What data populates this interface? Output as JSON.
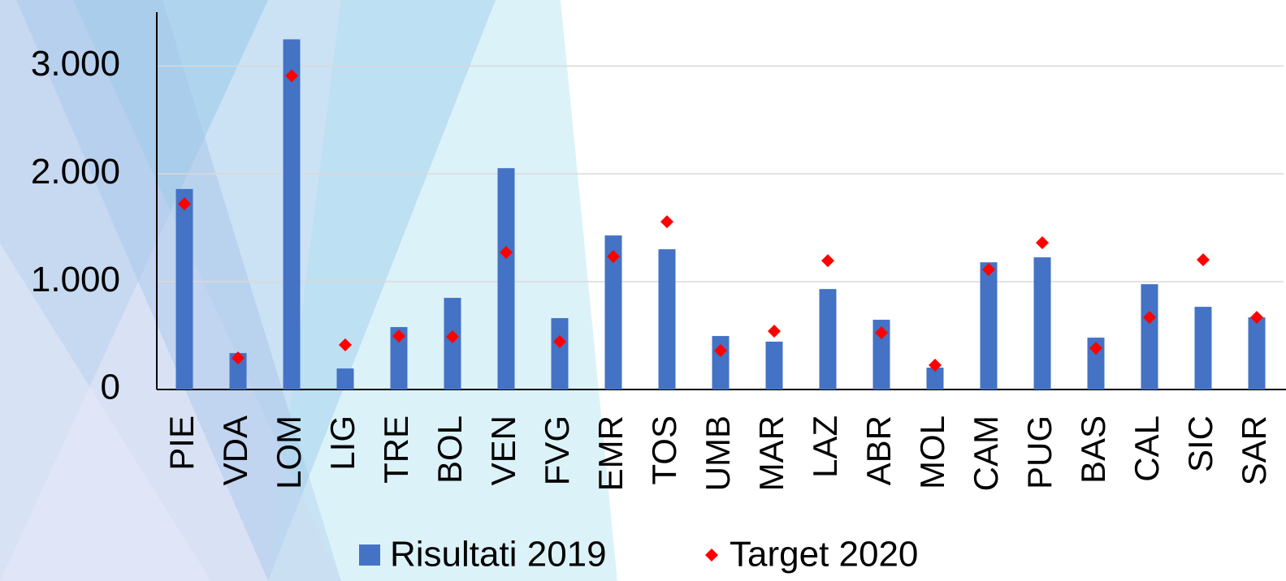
{
  "chart_data": {
    "type": "bar",
    "categories": [
      "PIE",
      "VDA",
      "LOM",
      "LIG",
      "TRE",
      "BOL",
      "VEN",
      "FVG",
      "EMR",
      "TOS",
      "UMB",
      "MAR",
      "LAZ",
      "ABR",
      "MOL",
      "CAM",
      "PUG",
      "BAS",
      "CAL",
      "SIC",
      "SAR"
    ],
    "series": [
      {
        "name": "Risultati 2019",
        "color": "#4472c4",
        "marker": "bar",
        "values": [
          1860,
          338,
          3248,
          195,
          579,
          850,
          2053,
          662,
          1429,
          1301,
          496,
          444,
          932,
          647,
          203,
          1180,
          1226,
          481,
          977,
          767,
          669
        ]
      },
      {
        "name": "Target 2020",
        "color": "#ff0000",
        "marker": "diamond",
        "values": [
          1722,
          293,
          2910,
          414,
          496,
          489,
          1271,
          444,
          1233,
          1556,
          361,
          541,
          1195,
          526,
          226,
          1113,
          1361,
          383,
          669,
          1203,
          669
        ]
      }
    ],
    "ylim": [
      0,
      3500
    ],
    "yticks": [
      0,
      {
        "value": 1000,
        "label": "1.000"
      },
      {
        "value": 2000,
        "label": "2.000"
      },
      {
        "value": 3000,
        "label": "3.000"
      }
    ],
    "grid": true,
    "legend": "bottom"
  }
}
